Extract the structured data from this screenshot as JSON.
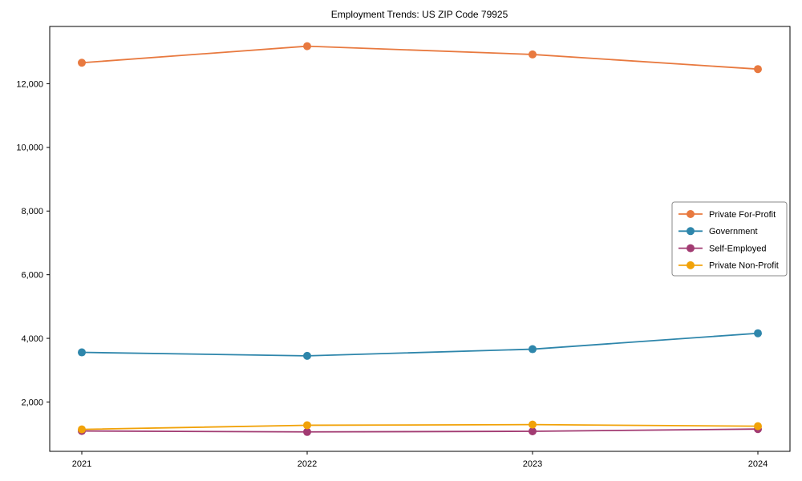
{
  "chart_data": {
    "type": "line",
    "title": "Employment Trends: US ZIP Code 79925",
    "categories": [
      "2021",
      "2022",
      "2023",
      "2024"
    ],
    "series": [
      {
        "name": "Private For-Profit",
        "color": "#E8793F",
        "values": [
          12660,
          13180,
          12920,
          12460
        ]
      },
      {
        "name": "Government",
        "color": "#2E86AB",
        "values": [
          3560,
          3450,
          3660,
          4160
        ]
      },
      {
        "name": "Self-Employed",
        "color": "#A23B72",
        "values": [
          1090,
          1060,
          1080,
          1150
        ]
      },
      {
        "name": "Private Non-Profit",
        "color": "#F1A208",
        "values": [
          1140,
          1270,
          1290,
          1240
        ]
      }
    ],
    "xlabel": "",
    "ylabel": "",
    "ylim": [
      450,
      13800
    ],
    "yticks": [
      2000,
      4000,
      6000,
      8000,
      10000,
      12000
    ],
    "ytick_labels": [
      "2,000",
      "4,000",
      "6,000",
      "8,000",
      "10,000",
      "12,000"
    ],
    "legend": {
      "position": "center right",
      "entries": [
        "Private For-Profit",
        "Government",
        "Self-Employed",
        "Private Non-Profit"
      ]
    },
    "grid": false,
    "marker": "circle",
    "axis_color": "#000000",
    "legend_border_color": "#8a8a8a",
    "background_color": "#ffffff"
  }
}
